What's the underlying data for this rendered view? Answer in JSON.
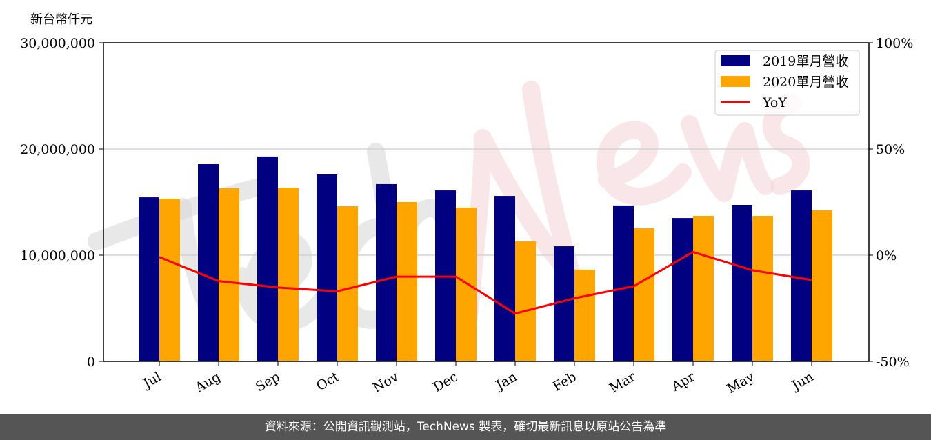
{
  "chart_data": {
    "type": "bar+line",
    "ylabel": "新台幣仟元",
    "categories": [
      "Jul",
      "Aug",
      "Sep",
      "Oct",
      "Nov",
      "Dec",
      "Jan",
      "Feb",
      "Mar",
      "Apr",
      "May",
      "Jun"
    ],
    "ylim": [
      0,
      30000000
    ],
    "y2lim": [
      -50,
      100
    ],
    "yticks": [
      "0",
      "10,000,000",
      "20,000,000",
      "30,000,000"
    ],
    "y2ticks": [
      "-50%",
      "0%",
      "50%",
      "100%"
    ],
    "grid": "horizontal",
    "legend": "top-right",
    "series": [
      {
        "name": "2019單月營收",
        "type": "bar",
        "color": "#000080",
        "values": [
          15450000,
          18570000,
          19290000,
          17600000,
          16690000,
          16100000,
          15580000,
          10840000,
          14680000,
          13500000,
          14740000,
          16100000
        ]
      },
      {
        "name": "2020單月營收",
        "type": "bar",
        "color": "#FFA500",
        "values": [
          15320000,
          16300000,
          16360000,
          14610000,
          15000000,
          14480000,
          11300000,
          8640000,
          12530000,
          13700000,
          13700000,
          14220000
        ]
      },
      {
        "name": "YoY",
        "type": "line",
        "axis": "right",
        "color": "#FF0000",
        "values": [
          -0.9,
          -12.2,
          -15.2,
          -17.0,
          -10.1,
          -10.1,
          -27.5,
          -20.3,
          -14.6,
          1.5,
          -7.1,
          -11.7
        ]
      }
    ]
  },
  "watermark": "TechNews",
  "footer": "資料來源：公開資訊觀測站，TechNews 製表，確切最新訊息以原站公告為準"
}
